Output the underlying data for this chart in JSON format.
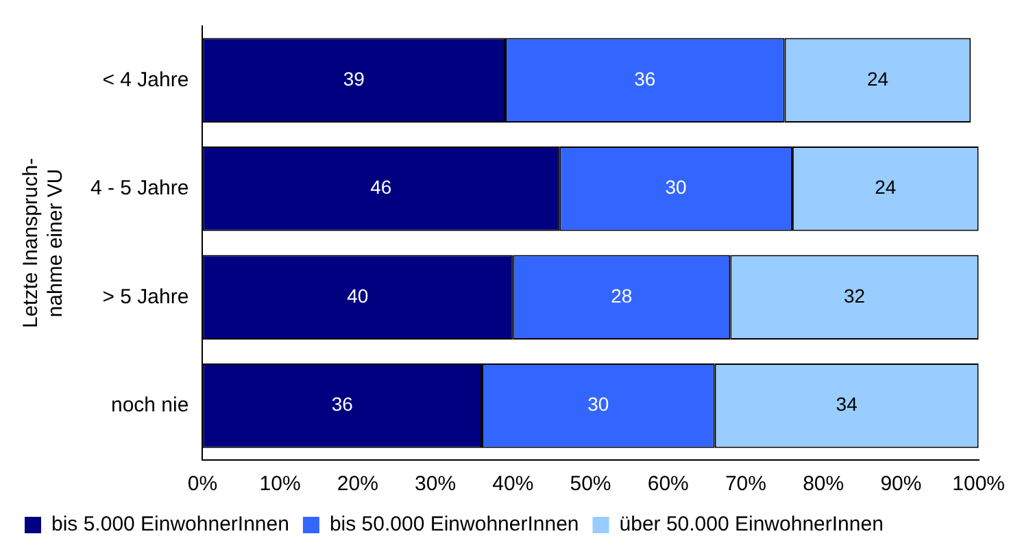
{
  "chart_data": {
    "type": "bar",
    "orientation": "horizontal",
    "stacked": true,
    "ylabel": "Letzte Inanspruch-\nnahme einer VU",
    "categories": [
      "< 4 Jahre",
      "4 - 5 Jahre",
      "> 5 Jahre",
      "noch nie"
    ],
    "series": [
      {
        "name": "bis 5.000 EinwohnerInnen",
        "color": "#000080",
        "values": [
          39,
          46,
          40,
          36
        ]
      },
      {
        "name": "bis 50.000 EinwohnerInnen",
        "color": "#3366ff",
        "values": [
          36,
          30,
          28,
          30
        ]
      },
      {
        "name": "über 50.000 EinwohnerInnen",
        "color": "#99ccff",
        "values": [
          24,
          24,
          32,
          34
        ]
      }
    ],
    "xlim": [
      0,
      100
    ],
    "xticks": [
      {
        "value": 0,
        "label": "0%"
      },
      {
        "value": 10,
        "label": "10%"
      },
      {
        "value": 20,
        "label": "20%"
      },
      {
        "value": 30,
        "label": "30%"
      },
      {
        "value": 40,
        "label": "40%"
      },
      {
        "value": 50,
        "label": "50%"
      },
      {
        "value": 60,
        "label": "60%"
      },
      {
        "value": 70,
        "label": "70%"
      },
      {
        "value": 80,
        "label": "80%"
      },
      {
        "value": 90,
        "label": "90%"
      },
      {
        "value": 100,
        "label": "100%"
      }
    ],
    "grid": false,
    "legend": "bottom",
    "data_labels": true
  }
}
